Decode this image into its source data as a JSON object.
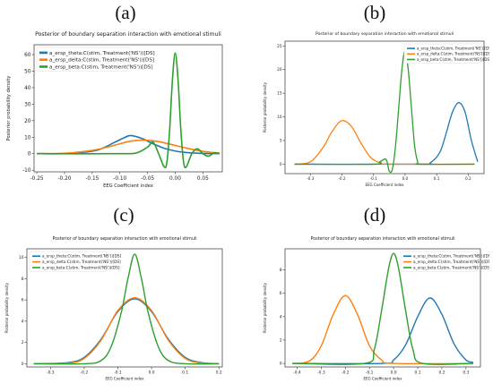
{
  "colors": {
    "theta": "#1f77b4",
    "delta": "#ff7f0e",
    "beta": "#2ca02c",
    "axis": "#333333",
    "text": "#222222"
  },
  "panels": [
    {
      "letter": "(a)",
      "title": "Posterior of boundary separation interaction with emotional stimuli",
      "ylabel": "Posterior probability density",
      "xlabel": "EEG Coefficient index",
      "x_ticks": [
        "-0.25",
        "-0.20",
        "-0.15",
        "-0.10",
        "-0.05",
        "0.00",
        "0.05"
      ],
      "y_ticks": [
        "-10",
        "0",
        "10",
        "20",
        "30",
        "40",
        "50",
        "60"
      ],
      "legend": [
        "a_ersp_theta:C(stim, Treatment('NS'))[DS]",
        "a_ersp_delta:C(stim, Treatment('NS'))[DS]",
        "a_ersp_beta:C(stim, Treatment('NS'))[DS]"
      ]
    },
    {
      "letter": "(b)",
      "title": "Posterior of boundary separation interaction with emotional stimuli",
      "ylabel": "Posterior probability density",
      "xlabel": "EEG Coefficient index",
      "x_ticks": [
        "-0.3",
        "-0.2",
        "-0.1",
        "0.0",
        "0.1",
        "0.2"
      ],
      "y_ticks": [
        "0",
        "5",
        "10",
        "15",
        "20",
        "25"
      ],
      "legend": [
        "a_ersp_theta:C(stim, Treatment('NS'))[DS]",
        "a_ersp_delta:C(stim, Treatment('NS'))[DS]",
        "a_ersp_beta:C(stim, Treatment('NS'))[DS]"
      ]
    },
    {
      "letter": "(c)",
      "title": "Posterior of boundary separation interaction with emotional stimuli",
      "ylabel": "Posterior probability density",
      "xlabel": "EEG Coefficient index",
      "x_ticks": [
        "-0.3",
        "-0.2",
        "-0.1",
        "0.0",
        "0.1",
        "0.2"
      ],
      "y_ticks": [
        "0",
        "2",
        "4",
        "6",
        "8",
        "10"
      ],
      "legend": [
        "a_ersp_theta:C(stim, Treatment('NS'))[DS]",
        "a_ersp_delta:C(stim, Treatment('NS'))[DS]",
        "a_ersp_beta:C(stim, Treatment('NS'))[DS]"
      ]
    },
    {
      "letter": "(d)",
      "title": "Posterior of boundary separation interaction with emotional stimuli",
      "ylabel": "Posterior probability density",
      "xlabel": "EEG Coefficient index",
      "x_ticks": [
        "-0.4",
        "-0.3",
        "-0.2",
        "-0.1",
        "0.0",
        "0.1",
        "0.2",
        "0.3"
      ],
      "y_ticks": [
        "0",
        "2",
        "4",
        "6",
        "8"
      ],
      "legend": [
        "a_ersp_theta:C(stim, Treatment('NS'))[DS]",
        "a_ersp_delta:C(stim, Treatment('NS'))[DS]",
        "a_ersp_beta:C(stim, Treatment('NS'))[DS]"
      ]
    }
  ],
  "chart_data": [
    {
      "type": "line",
      "title": "Posterior of boundary separation interaction with emotional stimuli",
      "xlabel": "EEG Coefficient index",
      "ylabel": "Posterior probability density",
      "xlim": [
        -0.255,
        0.085
      ],
      "ylim": [
        -11,
        66
      ],
      "legend_position": "top-left",
      "series": [
        {
          "name": "a_ersp_theta:C(stim, Treatment('NS'))[DS]",
          "color": "#1f77b4",
          "x": [
            -0.25,
            -0.2,
            -0.15,
            -0.13,
            -0.11,
            -0.09,
            -0.08,
            -0.06,
            -0.04,
            -0.02,
            0.0,
            0.02,
            0.04,
            0.06,
            0.08
          ],
          "y": [
            0,
            0.1,
            1.5,
            3.5,
            6.8,
            10,
            11,
            9.2,
            6,
            3.3,
            1.6,
            0.7,
            0.3,
            0.1,
            0
          ]
        },
        {
          "name": "a_ersp_delta:C(stim, Treatment('NS'))[DS]",
          "color": "#ff7f0e",
          "x": [
            -0.25,
            -0.2,
            -0.15,
            -0.12,
            -0.1,
            -0.08,
            -0.06,
            -0.04,
            -0.02,
            0.0,
            0.02,
            0.04,
            0.06,
            0.08
          ],
          "y": [
            0,
            0.2,
            2,
            4.2,
            6,
            7.6,
            8.2,
            7.8,
            6.6,
            5,
            3.4,
            2,
            1,
            0.4
          ]
        },
        {
          "name": "a_ersp_beta:C(stim, Treatment('NS'))[DS]",
          "color": "#2ca02c",
          "x": [
            -0.25,
            -0.1,
            -0.07,
            -0.05,
            -0.04,
            -0.03,
            -0.02,
            -0.015,
            -0.01,
            -0.005,
            0.0,
            0.005,
            0.01,
            0.015,
            0.02,
            0.03,
            0.04,
            0.05,
            0.06,
            0.07,
            0.08
          ],
          "y": [
            0,
            0,
            0.5,
            4,
            7,
            0,
            -8,
            -5,
            15,
            45,
            61,
            45,
            15,
            -5,
            -8,
            0,
            3,
            0,
            -1.5,
            0.5,
            0
          ]
        }
      ]
    },
    {
      "type": "line",
      "title": "Posterior of boundary separation interaction with emotional stimuli",
      "xlabel": "EEG Coefficient index",
      "ylabel": "Posterior probability density",
      "xlim": [
        -0.38,
        0.25
      ],
      "ylim": [
        -2,
        26
      ],
      "legend_position": "top-right",
      "series": [
        {
          "name": "a_ersp_theta:C(stim, Treatment('NS'))[DS]",
          "color": "#1f77b4",
          "x": [
            -0.35,
            0.05,
            0.08,
            0.11,
            0.13,
            0.15,
            0.17,
            0.19,
            0.21,
            0.23
          ],
          "y": [
            0,
            0,
            0.3,
            2.5,
            6.5,
            11,
            13,
            11,
            5,
            0.5
          ]
        },
        {
          "name": "a_ersp_delta:C(stim, Treatment('NS'))[DS]",
          "color": "#ff7f0e",
          "x": [
            -0.35,
            -0.3,
            -0.26,
            -0.23,
            -0.2,
            -0.17,
            -0.14,
            -0.11,
            -0.08,
            -0.05,
            0.22
          ],
          "y": [
            0,
            0.5,
            3.5,
            7,
            9.2,
            8,
            4.5,
            1.5,
            0.3,
            0,
            0
          ]
        },
        {
          "name": "a_ersp_beta:C(stim, Treatment('NS'))[DS]",
          "color": "#2ca02c",
          "x": [
            -0.35,
            -0.1,
            -0.08,
            -0.06,
            -0.05,
            -0.04,
            -0.03,
            -0.02,
            -0.01,
            0.0,
            0.01,
            0.02,
            0.03,
            0.04,
            0.05,
            0.22
          ],
          "y": [
            0,
            0,
            0.5,
            1,
            -1.5,
            -1,
            4,
            12,
            20,
            24,
            20,
            12,
            4,
            0.5,
            0,
            0
          ]
        }
      ]
    },
    {
      "type": "line",
      "title": "Posterior of boundary separation interaction with emotional stimuli",
      "xlabel": "EEG Coefficient index",
      "ylabel": "Posterior probability density",
      "xlim": [
        -0.37,
        0.21
      ],
      "ylim": [
        -0.3,
        10.8
      ],
      "legend_position": "top-left",
      "series": [
        {
          "name": "a_ersp_theta:C(stim, Treatment('NS'))[DS]",
          "color": "#1f77b4",
          "x": [
            -0.35,
            -0.25,
            -0.2,
            -0.15,
            -0.1,
            -0.05,
            0.0,
            0.05,
            0.1,
            0.15,
            0.2
          ],
          "y": [
            0,
            0.1,
            0.6,
            2.3,
            4.9,
            6.1,
            4.9,
            2.3,
            0.6,
            0.1,
            0
          ]
        },
        {
          "name": "a_ersp_delta:C(stim, Treatment('NS'))[DS]",
          "color": "#ff7f0e",
          "x": [
            -0.35,
            -0.25,
            -0.2,
            -0.15,
            -0.1,
            -0.05,
            0.0,
            0.05,
            0.1,
            0.15,
            0.2
          ],
          "y": [
            0,
            0.05,
            0.5,
            2.2,
            5,
            6.2,
            5,
            2.2,
            0.5,
            0.05,
            0
          ]
        },
        {
          "name": "a_ersp_beta:C(stim, Treatment('NS'))[DS]",
          "color": "#2ca02c",
          "x": [
            -0.35,
            -0.2,
            -0.15,
            -0.12,
            -0.09,
            -0.07,
            -0.05,
            -0.03,
            -0.01,
            0.02,
            0.05,
            0.1,
            0.2
          ],
          "y": [
            0,
            0,
            0.3,
            1.6,
            4.8,
            8,
            10.3,
            8,
            4.8,
            1.6,
            0.3,
            0,
            0
          ]
        }
      ]
    },
    {
      "type": "line",
      "title": "Posterior of boundary separation interaction with emotional stimuli",
      "xlabel": "EEG Coefficient index",
      "ylabel": "Posterior probability density",
      "xlim": [
        -0.45,
        0.36
      ],
      "ylim": [
        -0.3,
        9.8
      ],
      "legend_position": "top-right",
      "series": [
        {
          "name": "a_ersp_theta:C(stim, Treatment('NS'))[DS]",
          "color": "#1f77b4",
          "x": [
            -0.42,
            -0.05,
            0.0,
            0.05,
            0.1,
            0.15,
            0.2,
            0.25,
            0.3,
            0.33
          ],
          "y": [
            0,
            0,
            0.3,
            1.6,
            4,
            5.6,
            4.2,
            1.7,
            0.3,
            0.1
          ]
        },
        {
          "name": "a_ersp_delta:C(stim, Treatment('NS'))[DS]",
          "color": "#ff7f0e",
          "x": [
            -0.42,
            -0.35,
            -0.3,
            -0.25,
            -0.2,
            -0.15,
            -0.1,
            -0.05,
            0.0,
            0.33
          ],
          "y": [
            0,
            0.2,
            1.5,
            4.2,
            5.8,
            4.2,
            1.5,
            0.3,
            0,
            0
          ]
        },
        {
          "name": "a_ersp_beta:C(stim, Treatment('NS'))[DS]",
          "color": "#2ca02c",
          "x": [
            -0.42,
            -0.12,
            -0.08,
            -0.05,
            -0.02,
            0.0,
            0.02,
            0.05,
            0.08,
            0.12,
            0.33
          ],
          "y": [
            0,
            0,
            1.2,
            4.5,
            8.2,
            9.4,
            8.2,
            4.5,
            1.2,
            0,
            0
          ]
        }
      ]
    }
  ]
}
